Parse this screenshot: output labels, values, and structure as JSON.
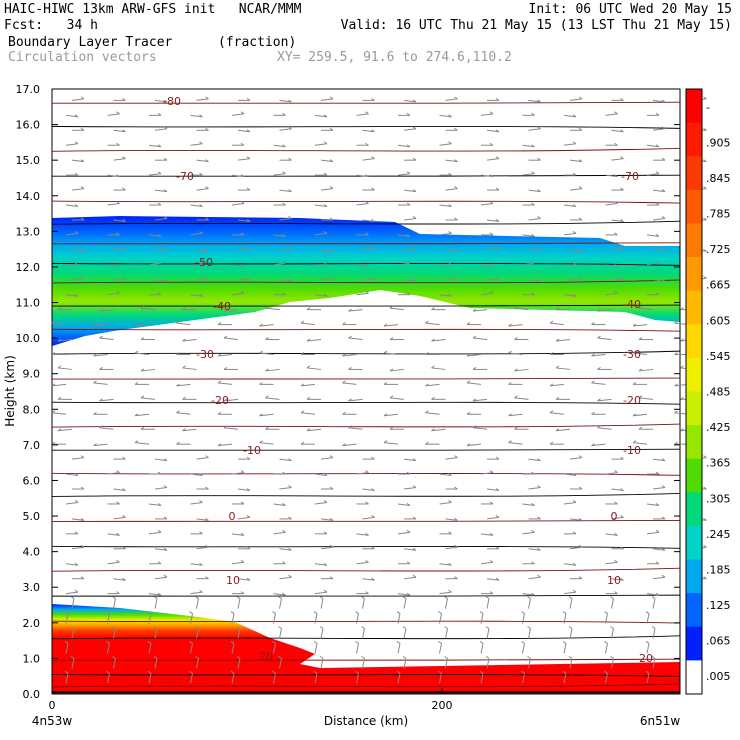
{
  "header": {
    "line1_left": "HAIC-HIWC 13km ARW-GFS init   NCAR/MMM",
    "line1_right": "Init: 06 UTC Wed 20 May 15",
    "line2_left": "Fcst:   34 h",
    "line2_right": "Valid: 16 UTC Thu 21 May 15 (13 LST Thu 21 May 15)",
    "line3_left": "Boundary Layer Tracer",
    "line3_mid": "(fraction)",
    "line4_left": "Circulation vectors",
    "line4_mid": "XY= 259.5, 91.6 to 274.6,110.2"
  },
  "chart_data": {
    "type": "heatmap",
    "title": "Boundary Layer Tracer",
    "units": "fraction",
    "xlabel": "Distance (km)",
    "ylabel": "Height (km)",
    "xlim": [
      0,
      322
    ],
    "ylim": [
      0,
      17
    ],
    "x_ticks": [
      0,
      200
    ],
    "x_end_labels": [
      "4n53w",
      "6n51w"
    ],
    "y_ticks": [
      "0.0",
      "1.0",
      "2.0",
      "3.0",
      "4.0",
      "5.0",
      "6.0",
      "7.0",
      "8.0",
      "9.0",
      "10.0",
      "11.0",
      "12.0",
      "13.0",
      "14.0",
      "15.0",
      "16.0",
      "17.0"
    ],
    "colorbar": {
      "labels": [
        "-",
        ".905",
        ".845",
        ".785",
        ".725",
        ".665",
        ".605",
        ".545",
        ".485",
        ".425",
        ".365",
        ".305",
        ".245",
        ".185",
        ".125",
        ".065",
        ".005"
      ],
      "colors": [
        "#ff0000",
        "#ff1a00",
        "#ff3a00",
        "#ff5a00",
        "#ff7a00",
        "#ff9a00",
        "#ffba00",
        "#ffd800",
        "#eef000",
        "#c8f000",
        "#96e600",
        "#50dc00",
        "#00d87a",
        "#00d2c8",
        "#00a8f0",
        "#0064ff",
        "#0020ff",
        "#ffffff"
      ]
    },
    "temperature_contours": {
      "label_values": [
        "-80",
        "-70",
        "-70",
        "-50",
        "-40",
        "-40",
        "-30",
        "-30",
        "-20",
        "-20",
        "-10",
        "-10",
        "0",
        "0",
        "10",
        "10",
        "20",
        "20"
      ]
    },
    "vector_field": "Circulation vectors"
  }
}
